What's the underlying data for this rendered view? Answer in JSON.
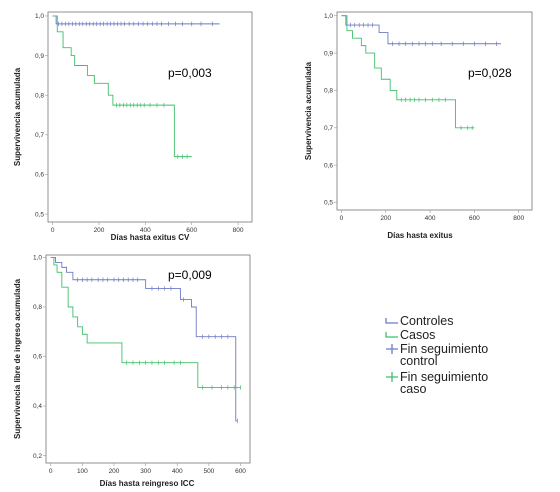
{
  "colors": {
    "controls": "#6e7bc4",
    "cases": "#3ec06a",
    "frame": "#777777",
    "grid": "#999999"
  },
  "chart_data": [
    {
      "type": "line",
      "xlabel": "Días hasta exitus CV",
      "ylabel": "Supervivencia acumulada",
      "annotation": "p=0,003",
      "xticks": [
        0,
        200,
        400,
        600,
        800
      ],
      "yticks": [
        0.5,
        0.6,
        0.7,
        0.8,
        0.9,
        1.0
      ],
      "ytick_labels": [
        "0,5",
        "0,6",
        "0,7",
        "0,8",
        "0,9",
        "1,0"
      ],
      "xlim": [
        -20,
        860
      ],
      "ylim": [
        0.48,
        1.01
      ],
      "series": [
        {
          "key": "controls",
          "steps": [
            [
              0,
              1.0
            ],
            [
              15,
              0.98
            ],
            [
              720,
              0.98
            ]
          ],
          "censors": [
            25,
            40,
            55,
            70,
            85,
            100,
            115,
            130,
            145,
            160,
            175,
            190,
            205,
            220,
            235,
            250,
            265,
            280,
            295,
            310,
            330,
            350,
            370,
            390,
            410,
            430,
            450,
            470,
            500,
            530,
            560,
            600,
            640,
            690
          ]
        },
        {
          "key": "cases",
          "steps": [
            [
              0,
              1.0
            ],
            [
              20,
              0.96
            ],
            [
              45,
              0.92
            ],
            [
              80,
              0.9
            ],
            [
              95,
              0.875
            ],
            [
              150,
              0.85
            ],
            [
              180,
              0.83
            ],
            [
              240,
              0.8
            ],
            [
              260,
              0.775
            ],
            [
              520,
              0.775
            ],
            [
              525,
              0.645
            ],
            [
              600,
              0.645
            ]
          ],
          "censors": [
            275,
            290,
            305,
            320,
            335,
            350,
            365,
            380,
            395,
            420,
            450,
            480,
            540,
            560,
            580
          ]
        }
      ]
    },
    {
      "type": "line",
      "xlabel": "Días hasta exitus",
      "ylabel": "Supervivencia acumulada",
      "annotation": "p=0,028",
      "xticks": [
        0,
        200,
        400,
        600,
        800
      ],
      "yticks": [
        0.5,
        0.6,
        0.7,
        0.8,
        0.9,
        1.0
      ],
      "ytick_labels": [
        "0,5",
        "0,6",
        "0,7",
        "0,8",
        "0,9",
        "1,0"
      ],
      "xlim": [
        -20,
        860
      ],
      "ylim": [
        0.48,
        1.01
      ],
      "series": [
        {
          "key": "controls",
          "steps": [
            [
              0,
              1.0
            ],
            [
              20,
              0.975
            ],
            [
              160,
              0.975
            ],
            [
              170,
              0.955
            ],
            [
              200,
              0.955
            ],
            [
              210,
              0.925
            ],
            [
              720,
              0.925
            ]
          ],
          "censors": [
            40,
            60,
            80,
            100,
            120,
            140,
            230,
            260,
            290,
            320,
            350,
            380,
            410,
            450,
            500,
            550,
            600,
            650,
            700
          ]
        },
        {
          "key": "cases",
          "steps": [
            [
              0,
              1.0
            ],
            [
              25,
              0.96
            ],
            [
              50,
              0.94
            ],
            [
              90,
              0.92
            ],
            [
              110,
              0.9
            ],
            [
              150,
              0.86
            ],
            [
              180,
              0.83
            ],
            [
              220,
              0.8
            ],
            [
              250,
              0.775
            ],
            [
              505,
              0.775
            ],
            [
              515,
              0.7
            ],
            [
              600,
              0.7
            ]
          ],
          "censors": [
            270,
            290,
            310,
            330,
            350,
            380,
            410,
            440,
            470,
            540,
            570,
            590
          ]
        }
      ]
    },
    {
      "type": "line",
      "xlabel": "Días hasta reingreso ICC",
      "ylabel": "Supervivencia libre de ingreso acumulada",
      "annotation": "p=0,009",
      "xticks": [
        0,
        100,
        200,
        300,
        400,
        500,
        600
      ],
      "yticks": [
        0.2,
        0.4,
        0.6,
        0.8,
        1.0
      ],
      "ytick_labels": [
        "0,2",
        "0,4",
        "0,6",
        "0,8",
        "1,0"
      ],
      "xlim": [
        -15,
        630
      ],
      "ylim": [
        0.17,
        1.01
      ],
      "series": [
        {
          "key": "controls",
          "steps": [
            [
              0,
              1.0
            ],
            [
              15,
              0.98
            ],
            [
              35,
              0.96
            ],
            [
              50,
              0.94
            ],
            [
              70,
              0.91
            ],
            [
              290,
              0.91
            ],
            [
              300,
              0.875
            ],
            [
              400,
              0.875
            ],
            [
              410,
              0.83
            ],
            [
              445,
              0.8
            ],
            [
              460,
              0.68
            ],
            [
              580,
              0.68
            ],
            [
              585,
              0.34
            ],
            [
              590,
              0.34
            ]
          ],
          "censors": [
            85,
            100,
            115,
            130,
            150,
            165,
            180,
            200,
            215,
            230,
            245,
            260,
            275,
            320,
            340,
            360,
            380,
            420,
            480,
            500,
            520,
            540,
            560,
            590
          ]
        },
        {
          "key": "cases",
          "steps": [
            [
              0,
              1.0
            ],
            [
              10,
              0.97
            ],
            [
              20,
              0.94
            ],
            [
              35,
              0.88
            ],
            [
              55,
              0.8
            ],
            [
              70,
              0.76
            ],
            [
              85,
              0.72
            ],
            [
              100,
              0.69
            ],
            [
              115,
              0.655
            ],
            [
              215,
              0.655
            ],
            [
              225,
              0.575
            ],
            [
              455,
              0.575
            ],
            [
              465,
              0.475
            ],
            [
              600,
              0.475
            ]
          ],
          "censors": [
            240,
            260,
            280,
            300,
            320,
            340,
            360,
            390,
            410,
            480,
            510,
            540,
            560,
            580,
            600
          ]
        }
      ]
    }
  ],
  "legend": {
    "items": [
      {
        "key": "controls",
        "kind": "line",
        "lines": [
          "Controles"
        ]
      },
      {
        "key": "cases",
        "kind": "line",
        "lines": [
          "Casos"
        ]
      },
      {
        "key": "controls",
        "kind": "censor",
        "lines": [
          "Fin seguimiento",
          "control"
        ]
      },
      {
        "key": "cases",
        "kind": "censor",
        "lines": [
          "Fin seguimiento",
          "caso"
        ]
      }
    ]
  }
}
